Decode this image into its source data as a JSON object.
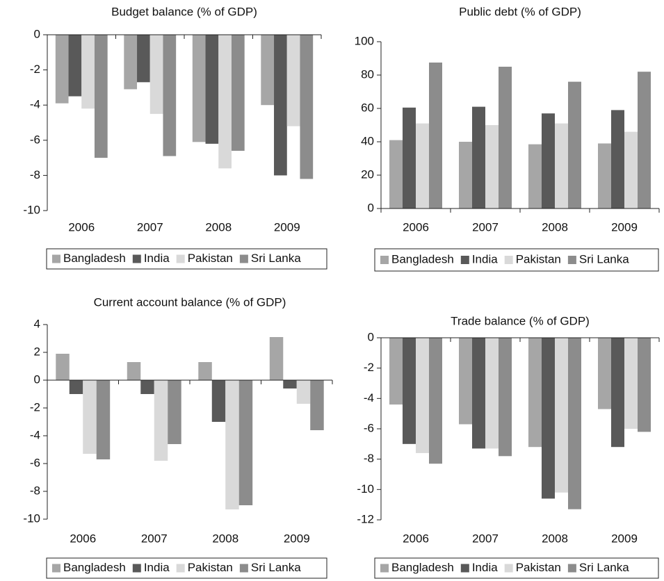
{
  "chart_data": [
    {
      "type": "bar",
      "title": "Budget balance (% of GDP)",
      "categories": [
        "2006",
        "2007",
        "2008",
        "2009"
      ],
      "series": [
        {
          "name": "Bangladesh",
          "color": "#a6a6a6",
          "values": [
            -3.9,
            -3.1,
            -6.1,
            -4.0
          ]
        },
        {
          "name": "India",
          "color": "#595959",
          "values": [
            -3.5,
            -2.7,
            -6.2,
            -8.0
          ]
        },
        {
          "name": "Pakistan",
          "color": "#d9d9d9",
          "values": [
            -4.2,
            -4.5,
            -7.6,
            -5.2
          ]
        },
        {
          "name": "Sri Lanka",
          "color": "#8c8c8c",
          "values": [
            -7.0,
            -6.9,
            -6.6,
            -8.2
          ]
        }
      ],
      "ylim": [
        -10,
        0
      ],
      "yticks": [
        0,
        -2,
        -4,
        -6,
        -8,
        -10
      ],
      "legend": "bottom"
    },
    {
      "type": "bar",
      "title": "Public debt (% of GDP)",
      "categories": [
        "2006",
        "2007",
        "2008",
        "2009"
      ],
      "series": [
        {
          "name": "Bangladesh",
          "color": "#a6a6a6",
          "values": [
            41,
            40,
            38.5,
            39
          ]
        },
        {
          "name": "India",
          "color": "#595959",
          "values": [
            60.5,
            61,
            57,
            59
          ]
        },
        {
          "name": "Pakistan",
          "color": "#d9d9d9",
          "values": [
            51,
            50,
            51,
            46
          ]
        },
        {
          "name": "Sri Lanka",
          "color": "#8c8c8c",
          "values": [
            87.5,
            85,
            76,
            82
          ]
        }
      ],
      "ylim": [
        0,
        100
      ],
      "yticks": [
        100,
        80,
        60,
        40,
        20,
        0
      ],
      "legend": "bottom"
    },
    {
      "type": "bar",
      "title": "Current account balance (% of GDP)",
      "categories": [
        "2006",
        "2007",
        "2008",
        "2009"
      ],
      "series": [
        {
          "name": "Bangladesh",
          "color": "#a6a6a6",
          "values": [
            1.9,
            1.3,
            1.3,
            3.1
          ]
        },
        {
          "name": "India",
          "color": "#595959",
          "values": [
            -1.0,
            -1.0,
            -3.0,
            -0.6
          ]
        },
        {
          "name": "Pakistan",
          "color": "#d9d9d9",
          "values": [
            -5.3,
            -5.8,
            -9.3,
            -1.7
          ]
        },
        {
          "name": "Sri Lanka",
          "color": "#8c8c8c",
          "values": [
            -5.7,
            -4.6,
            -9.0,
            -3.6
          ]
        }
      ],
      "ylim": [
        -10,
        4
      ],
      "yticks": [
        4,
        2,
        0,
        -2,
        -4,
        -6,
        -8,
        -10
      ],
      "legend": "bottom"
    },
    {
      "type": "bar",
      "title": "Trade balance (% of GDP)",
      "categories": [
        "2006",
        "2007",
        "2008",
        "2009"
      ],
      "series": [
        {
          "name": "Bangladesh",
          "color": "#a6a6a6",
          "values": [
            -4.4,
            -5.7,
            -7.2,
            -4.7
          ]
        },
        {
          "name": "India",
          "color": "#595959",
          "values": [
            -7.0,
            -7.3,
            -10.6,
            -7.2
          ]
        },
        {
          "name": "Pakistan",
          "color": "#d9d9d9",
          "values": [
            -7.6,
            -7.3,
            -10.2,
            -6.0
          ]
        },
        {
          "name": "Sri Lanka",
          "color": "#8c8c8c",
          "values": [
            -8.3,
            -7.8,
            -11.3,
            -6.2
          ]
        }
      ],
      "ylim": [
        -12,
        0
      ],
      "yticks": [
        0,
        -2,
        -4,
        -6,
        -8,
        -10,
        -12
      ],
      "legend": "bottom"
    }
  ]
}
